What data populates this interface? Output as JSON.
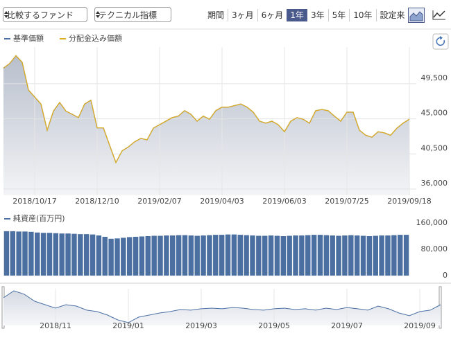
{
  "toolbar": {
    "compare": "比較するファンド",
    "technical": "テクニカル指標",
    "period_label": "期間",
    "periods": [
      "3ヶ月",
      "6ヶ月",
      "1年",
      "3年",
      "5年",
      "10年",
      "設定来"
    ],
    "selected": "1年"
  },
  "chart_data": [
    {
      "type": "line",
      "area": true,
      "categories": [
        null,
        null,
        null,
        null,
        null,
        "2018/10/17",
        null,
        null,
        null,
        null,
        null,
        null,
        null,
        null,
        null,
        "2018/12/10",
        null,
        null,
        null,
        null,
        null,
        null,
        null,
        null,
        null,
        "2019/02/07",
        null,
        null,
        null,
        null,
        null,
        null,
        null,
        null,
        null,
        "2019/04/03",
        null,
        null,
        null,
        null,
        null,
        null,
        null,
        null,
        null,
        "2019/06/03",
        null,
        null,
        null,
        null,
        null,
        null,
        null,
        null,
        null,
        "2019/07/25",
        null,
        null,
        null,
        null,
        null,
        null,
        null,
        null,
        null,
        "2019/09/18"
      ],
      "series": [
        {
          "name": "基準価額",
          "color": "#4a6fa5",
          "values": [
            51500,
            52100,
            53100,
            52250,
            48700,
            47800,
            46900,
            43550,
            46000,
            47100,
            46000,
            45600,
            45150,
            46900,
            47400,
            43850,
            43850,
            41600,
            39400,
            40900,
            41400,
            42050,
            42500,
            42300,
            43800,
            44250,
            44700,
            45150,
            45350,
            46050,
            45600,
            44700,
            45350,
            44950,
            46050,
            46500,
            46500,
            46700,
            46900,
            46500,
            45850,
            44700,
            44450,
            44700,
            44250,
            43350,
            44700,
            45150,
            44950,
            44450,
            46050,
            46200,
            46050,
            45350,
            44700,
            45850,
            45850,
            43550,
            42900,
            42650,
            43350,
            43200,
            42900,
            43800,
            44450,
            44950
          ]
        },
        {
          "name": "分配金込み価額",
          "color": "#e0ae1f",
          "values": [
            51500,
            52100,
            53100,
            52250,
            48700,
            47800,
            46900,
            43550,
            46000,
            47100,
            46000,
            45600,
            45150,
            46900,
            47400,
            43850,
            43850,
            41600,
            39400,
            40900,
            41400,
            42050,
            42500,
            42300,
            43800,
            44250,
            44700,
            45150,
            45350,
            46050,
            45600,
            44700,
            45350,
            44950,
            46050,
            46500,
            46500,
            46700,
            46900,
            46500,
            45850,
            44700,
            44450,
            44700,
            44250,
            43350,
            44700,
            45150,
            44950,
            44450,
            46050,
            46200,
            46050,
            45350,
            44700,
            45850,
            45850,
            43550,
            42900,
            42650,
            43350,
            43200,
            42900,
            43800,
            44450,
            44950
          ]
        }
      ],
      "ylim": [
        35200,
        54200
      ],
      "yticks": [
        {
          "value": 36000,
          "label": "36,000"
        },
        {
          "value": 40500,
          "label": "40,500"
        },
        {
          "value": 45000,
          "label": "45,000"
        },
        {
          "value": 49500,
          "label": "49,500"
        }
      ],
      "grid": true
    },
    {
      "type": "bar",
      "series": [
        {
          "name": "純資産(百万円)",
          "color": "#4a6fa0",
          "values": [
            135000,
            135000,
            134000,
            134000,
            133000,
            131000,
            130000,
            130000,
            129000,
            128000,
            128000,
            127000,
            126000,
            126000,
            125000,
            122000,
            118000,
            112000,
            113000,
            115000,
            117000,
            118000,
            119000,
            120000,
            121000,
            121000,
            122000,
            122000,
            123000,
            123000,
            122000,
            121000,
            122000,
            123000,
            124000,
            124000,
            125000,
            125000,
            124000,
            123000,
            122000,
            121000,
            121000,
            122000,
            121000,
            120000,
            121000,
            122000,
            122000,
            123000,
            124000,
            124000,
            123000,
            122000,
            121000,
            122000,
            123000,
            122000,
            121000,
            120000,
            121000,
            122000,
            122000,
            123000,
            124000,
            124000
          ]
        }
      ],
      "ylim": [
        0,
        160000
      ],
      "yticks": [
        0,
        {
          "value": 80000,
          "label": "80,000"
        },
        {
          "value": 160000,
          "label": "160,000"
        }
      ]
    },
    {
      "type": "line",
      "area": true,
      "categories": [
        null,
        null,
        null,
        null,
        null,
        "2018/11",
        null,
        null,
        null,
        null,
        null,
        null,
        "2019/01",
        null,
        null,
        null,
        null,
        null,
        null,
        "2019/03",
        null,
        null,
        null,
        null,
        null,
        null,
        "2019/05",
        null,
        null,
        null,
        null,
        null,
        null,
        "2019/07",
        null,
        null,
        null,
        null,
        null,
        null,
        "2019/09",
        null,
        null
      ],
      "series": [
        {
          "color": "#4a6fa5",
          "values": [
            49600,
            53000,
            51300,
            47900,
            46200,
            44500,
            46200,
            45500,
            43500,
            42800,
            41100,
            38700,
            37400,
            40100,
            41100,
            42100,
            42800,
            43800,
            43500,
            44200,
            44500,
            44200,
            44800,
            44500,
            43800,
            43500,
            44200,
            44500,
            43800,
            44200,
            43500,
            44500,
            43800,
            44800,
            44200,
            43500,
            45500,
            44200,
            42100,
            40800,
            42800,
            43500,
            46200
          ]
        }
      ],
      "ylim": [
        36000,
        54000
      ],
      "grid": true
    }
  ]
}
